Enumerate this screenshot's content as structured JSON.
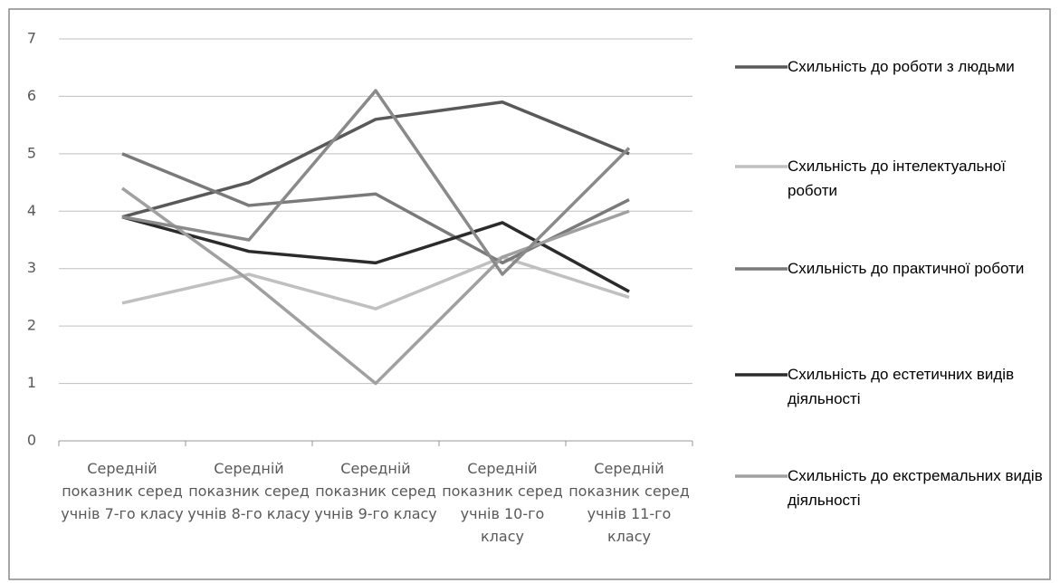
{
  "chart_data": {
    "type": "line",
    "categories": [
      "Середній показник серед учнів 7-го класу",
      "Середній показник серед учнів 8-го класу",
      "Середній показник серед учнів 9-го класу",
      "Середній показник серед учнів 10-го класу",
      "Середній показник серед учнів 11-го класу"
    ],
    "series": [
      {
        "name": "Схильність до роботи з людьми",
        "color": "#595959",
        "values": [
          3.9,
          4.5,
          5.6,
          5.9,
          5.0
        ]
      },
      {
        "name": "Схильність до інтелектуальної роботи",
        "color": "#c0c0c0",
        "values": [
          2.4,
          2.9,
          2.3,
          3.2,
          2.5
        ]
      },
      {
        "name": "Схильність до практичної роботи",
        "color": "#7a7a7a",
        "values": [
          5.0,
          4.1,
          4.3,
          3.1,
          4.2
        ]
      },
      {
        "name": "Схильність до естетичних видів діяльності",
        "color": "#2b2b2b",
        "values": [
          3.9,
          3.3,
          3.1,
          3.8,
          2.6
        ]
      },
      {
        "name": "Схильність до екстремальних видів діяльності",
        "color": "#a0a0a0",
        "values": [
          4.4,
          2.8,
          1.0,
          3.2,
          4.0
        ]
      },
      {
        "color": "#8a8a8a",
        "values": [
          3.9,
          3.5,
          6.1,
          2.9,
          5.1
        ]
      }
    ],
    "ylim": [
      0,
      7
    ],
    "yticks": [
      0,
      1,
      2,
      3,
      4,
      5,
      6,
      7
    ],
    "grid": true
  }
}
